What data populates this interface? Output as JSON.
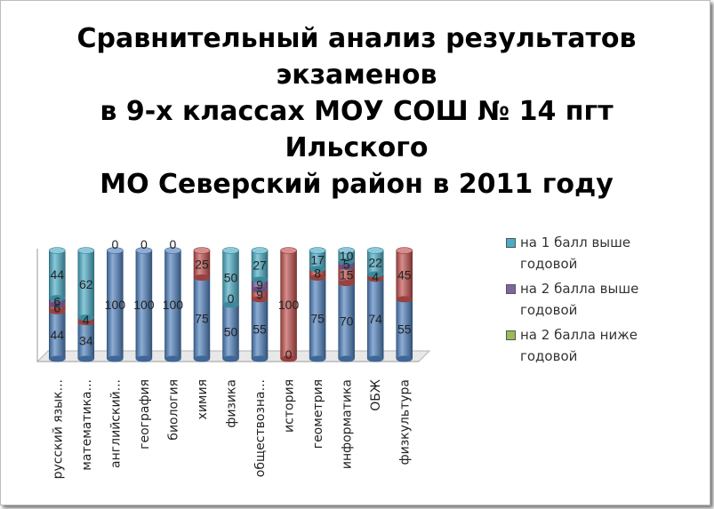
{
  "chart_data": {
    "type": "bar",
    "stacked": true,
    "title_lines": [
      "Сравнительный анализ результатов",
      "экзаменов",
      "в 9-х классах МОУ СОШ № 14 пгт",
      "Ильского",
      "МО Северский район в 2011 году"
    ],
    "categories": [
      "русский язык...",
      "математика...",
      "английский...",
      "география",
      "биология",
      "химия",
      "физика",
      "обществозна...",
      "история",
      "геометрия",
      "информатика",
      "ОБЖ",
      "физкультура"
    ],
    "series": [
      {
        "color": "#4f81bd",
        "values": [
          44,
          34,
          100,
          100,
          100,
          75,
          50,
          55,
          0,
          75,
          70,
          74,
          55
        ]
      },
      {
        "color": "#c0504d",
        "values": [
          6,
          4,
          0,
          0,
          0,
          25,
          0,
          9,
          100,
          8,
          15,
          4,
          45
        ]
      },
      {
        "name": "на 2 балла выше годовой",
        "color": "#8064a2",
        "values": [
          6,
          0,
          0,
          0,
          0,
          0,
          0,
          9,
          0,
          0,
          5,
          0,
          0
        ]
      },
      {
        "name": "на 2 балла ниже годовой",
        "color": "#9bbb59",
        "values": [
          0,
          0,
          0,
          0,
          0,
          0,
          0,
          0,
          0,
          0,
          0,
          0,
          0
        ]
      },
      {
        "name": "на 1 балл выше годовой",
        "color": "#4bacc6",
        "values": [
          44,
          62,
          0,
          0,
          0,
          0,
          50,
          27,
          0,
          17,
          10,
          22,
          0
        ]
      }
    ],
    "ylim": [
      0,
      100
    ],
    "legend_position": "right",
    "grid": false
  },
  "legend_order": [
    4,
    2,
    3
  ]
}
